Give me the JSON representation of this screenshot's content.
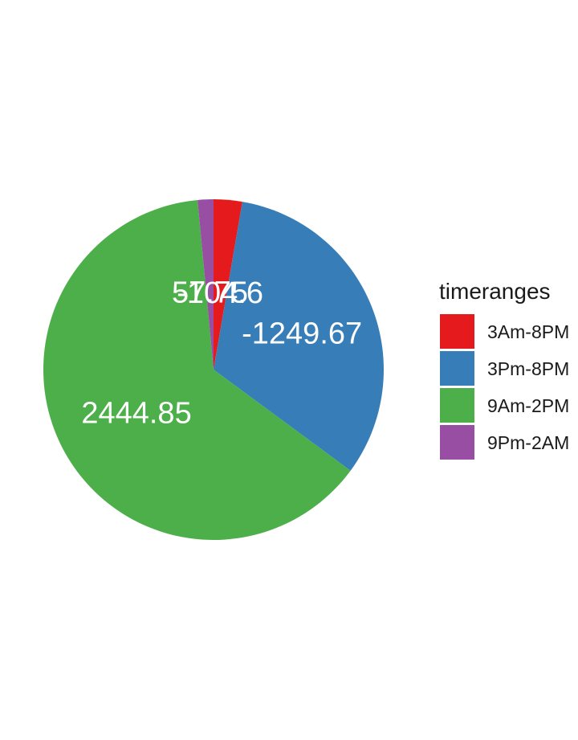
{
  "chart_data": {
    "type": "pie",
    "legend_title": "timeranges",
    "legend_position": "right",
    "start_angle_deg": 0,
    "direction": "clockwise",
    "categories": [
      "3Am-8PM",
      "3Pm-8PM",
      "9Am-2PM",
      "9Pm-2AM"
    ],
    "values": [
      104.6,
      1249.67,
      2444.85,
      57.75
    ],
    "labels": [
      "-104.6",
      "-1249.67",
      "2444.85",
      "57.75"
    ],
    "colors": [
      "#E41A1C",
      "#377EB8",
      "#4DAF4A",
      "#984EA3"
    ]
  }
}
